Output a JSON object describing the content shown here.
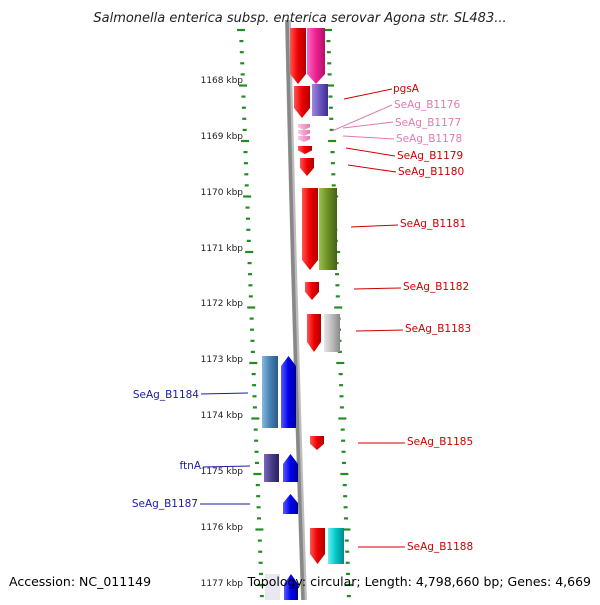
{
  "title": "Salmonella enterica subsp. enterica serovar Agona str. SL483...",
  "footer": {
    "accession": "Accession: NC_011149",
    "topology": "Topology: circular; Length: 4,798,660 bp; Genes: 4,669"
  },
  "colors": {
    "ruler_tick": "#228b22",
    "axis": "#888888",
    "red_label": "#cc0000",
    "pink_label": "#e07ab0",
    "blue_label": "#1a1aa8"
  },
  "ruler_labels": [
    {
      "text": "1168 kbp",
      "kbp": 1168
    },
    {
      "text": "1169 kbp",
      "kbp": 1169
    },
    {
      "text": "1170 kbp",
      "kbp": 1170
    },
    {
      "text": "1171 kbp",
      "kbp": 1171
    },
    {
      "text": "1172 kbp",
      "kbp": 1172
    },
    {
      "text": "1173 kbp",
      "kbp": 1173
    },
    {
      "text": "1174 kbp",
      "kbp": 1174
    },
    {
      "text": "1175 kbp",
      "kbp": 1175
    },
    {
      "text": "1176 kbp",
      "kbp": 1176
    },
    {
      "text": "1177 kbp",
      "kbp": 1177
    }
  ],
  "gene_labels": [
    {
      "text": "pgsA",
      "color": "red"
    },
    {
      "text": "SeAg_B1176",
      "color": "pink"
    },
    {
      "text": "SeAg_B1177",
      "color": "pink"
    },
    {
      "text": "SeAg_B1178",
      "color": "pink"
    },
    {
      "text": "SeAg_B1179",
      "color": "red"
    },
    {
      "text": "SeAg_B1180",
      "color": "red"
    },
    {
      "text": "SeAg_B1181",
      "color": "red"
    },
    {
      "text": "SeAg_B1182",
      "color": "red"
    },
    {
      "text": "SeAg_B1183",
      "color": "red"
    },
    {
      "text": "SeAg_B1184",
      "color": "blue"
    },
    {
      "text": "SeAg_B1185",
      "color": "red"
    },
    {
      "text": "ftnA",
      "color": "blue"
    },
    {
      "text": "SeAg_B1187",
      "color": "blue"
    },
    {
      "text": "SeAg_B1188",
      "color": "red"
    }
  ]
}
